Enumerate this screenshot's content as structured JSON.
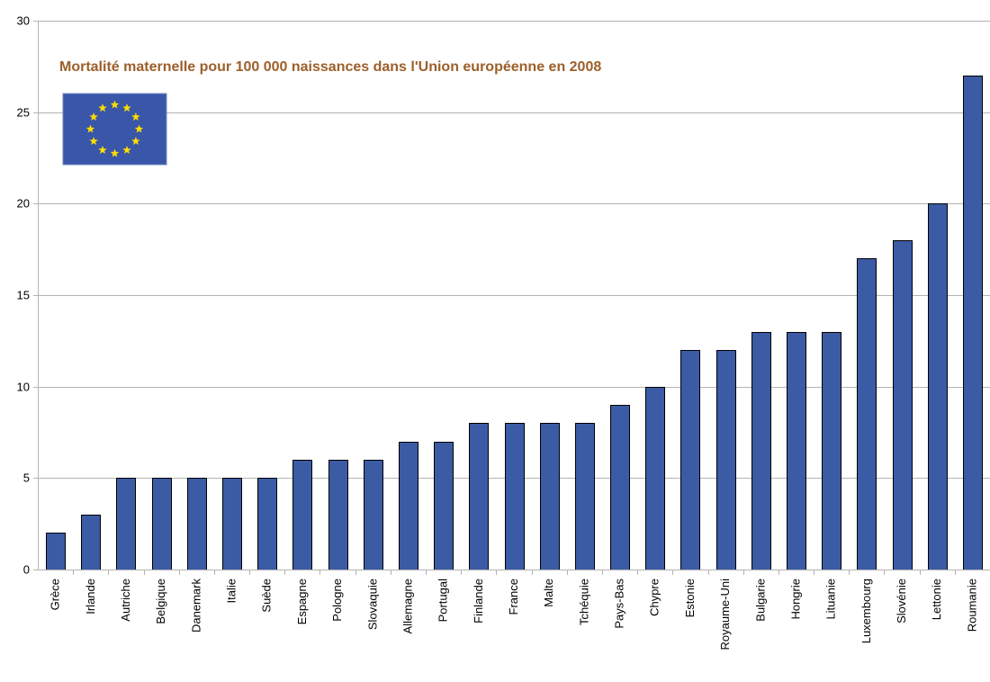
{
  "colors": {
    "bar_fill": "#3c5ba5",
    "title": "#9c5f2a",
    "flag_bg": "#3a56a8",
    "flag_star": "#ffdd00"
  },
  "chart_data": {
    "type": "bar",
    "title": "Mortalité maternelle pour 100 000 naissances dans l'Union européenne en 2008",
    "xlabel": "",
    "ylabel": "",
    "ylim": [
      0,
      30
    ],
    "yticks": [
      0,
      5,
      10,
      15,
      20,
      25,
      30
    ],
    "grid": true,
    "categories": [
      "Grèce",
      "Irlande",
      "Autriche",
      "Belgique",
      "Danemark",
      "Italie",
      "Suède",
      "Espagne",
      "Pologne",
      "Slovaquie",
      "Allemagne",
      "Portugal",
      "Finlande",
      "France",
      "Malte",
      "Tchéquie",
      "Pays-Bas",
      "Chypre",
      "Estonie",
      "Royaume-Uni",
      "Bulgarie",
      "Hongrie",
      "Lituanie",
      "Luxembourg",
      "Slovénie",
      "Lettonie",
      "Roumanie"
    ],
    "values": [
      2,
      3,
      5,
      5,
      5,
      5,
      5,
      6,
      6,
      6,
      7,
      7,
      8,
      8,
      8,
      8,
      9,
      10,
      12,
      12,
      13,
      13,
      13,
      17,
      18,
      20,
      27
    ]
  }
}
